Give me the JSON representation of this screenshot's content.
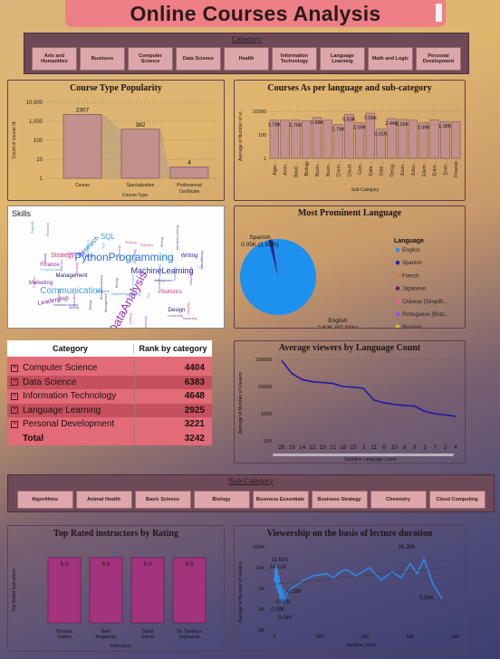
{
  "page": {
    "title": "Online Courses Analysis"
  },
  "category_slicer": {
    "title": "Category",
    "items": [
      "Arts and Humanities",
      "Business",
      "Computer Science",
      "Data Science",
      "Health",
      "Information Technology",
      "Language Learning",
      "Math and Logic",
      "Personal Development"
    ]
  },
  "subcategory_slicer": {
    "title": "Sub-Category",
    "items": [
      "Algorithms",
      "Animal Health",
      "Basic Science",
      "Biology",
      "Business Essentials",
      "Business Strategy",
      "Chemistry",
      "Cloud Computing"
    ]
  },
  "skills": {
    "title": "Skills",
    "words": [
      "PythonProgramming",
      "DataAnalysis",
      "MachineLearning",
      "Communication",
      "Leadership",
      "Management",
      "Statistics",
      "Research",
      "Finance",
      "Writing",
      "SQL",
      "Marketing",
      "Design",
      "Strategy"
    ]
  },
  "table": {
    "headers": [
      "Category",
      "Rank by category"
    ],
    "rows": [
      {
        "category": "Computer Science",
        "rank": "4404"
      },
      {
        "category": "Data Science",
        "rank": "6383"
      },
      {
        "category": "Information Technology",
        "rank": "4648"
      },
      {
        "category": "Language Learning",
        "rank": "2925"
      },
      {
        "category": "Personal Development",
        "rank": "3221"
      }
    ],
    "total_label": "Total",
    "total_value": "3242"
  },
  "colors": {
    "bar": "#c3908e",
    "pie_english": "#1e90ee",
    "line": "#1a1aa8",
    "instructor_bar": "#a3337d",
    "viewer_line": "#2a8ef0"
  },
  "chart_data": [
    {
      "type": "bar",
      "title": "Course Type Popularity",
      "ylabel": "Count of course Id",
      "xlabel": "Course Type",
      "yscale": "log",
      "yticks": [
        "1",
        "10",
        "100",
        "1,000",
        "10,000"
      ],
      "categories": [
        "Course",
        "Specialization",
        "Professional Certificate"
      ],
      "values": [
        2307,
        382,
        4
      ],
      "labels": [
        "2307",
        "382",
        "4"
      ]
    },
    {
      "type": "bar",
      "title": "Courses As per language and sub-category",
      "ylabel": "Average of Number of vi...",
      "xlabel": "Sub-Category",
      "yscale": "log",
      "yticks": [
        "1",
        "100",
        "10000"
      ],
      "categories": [
        "Algor...",
        "Anim...",
        "Basic ...",
        "Biology",
        "Busin...",
        "Busin...",
        "Chem...",
        "Cloud...",
        "Com...",
        "Data ...",
        "Data ...",
        "Desig...",
        "Econ...",
        "Educ...",
        "Electr...",
        "Entre...",
        "Envir...",
        "Finance"
      ],
      "values": [
        1790,
        1760,
        1760,
        1600,
        2980,
        1800,
        790,
        5530,
        1090,
        7050,
        310,
        2440,
        2020,
        1800,
        1090,
        1800,
        1380,
        1380
      ],
      "labels": [
        "1.79K",
        "",
        "1.76K",
        "",
        "2.98K",
        "",
        "0.79K",
        "5.53K",
        "1.09K",
        "7.05K",
        "0.31K",
        "2.44K",
        "2.02K",
        "",
        "1.09K",
        "",
        "1.38K",
        ""
      ]
    },
    {
      "type": "pie",
      "title": "Most Prominent Language",
      "legend_title": "Language",
      "series": [
        {
          "name": "English",
          "value": 2620,
          "color": "#1e90ee"
        },
        {
          "name": "Spanish",
          "value": 50,
          "color": "#1a2d9e"
        },
        {
          "name": "French",
          "value": 1,
          "color": "#e0744a"
        },
        {
          "name": "Japanese",
          "value": 1,
          "color": "#6b1a6b"
        },
        {
          "name": "Chinese (Simplifi...",
          "value": 1,
          "color": "#e85fa0"
        },
        {
          "name": "Portuguese (Braz...",
          "value": 1,
          "color": "#8a5ad8"
        },
        {
          "name": "Russian",
          "value": 1,
          "color": "#e8c21a"
        }
      ],
      "labels": {
        "english": "English",
        "english_value": "2.62K (97.33%)",
        "spanish": "Spanish",
        "spanish_value": "0.05K (1.93%)"
      }
    },
    {
      "type": "line",
      "title": "Average viewers by Language Count",
      "ylabel": "Average of Number of Viewers",
      "xlabel": "Subtitles Language Count",
      "yscale": "log",
      "yticks": [
        "100",
        "1000",
        "10000",
        "100000"
      ],
      "categories": [
        "26",
        "16",
        "14",
        "12",
        "13",
        "21",
        "18",
        "15",
        "3",
        "11",
        "6",
        "10",
        "8",
        "9",
        "1",
        "7",
        "2",
        "4"
      ],
      "values": [
        90000,
        30000,
        18000,
        15000,
        14000,
        13000,
        10000,
        9500,
        8500,
        3200,
        2500,
        2200,
        2000,
        1900,
        1200,
        1000,
        900,
        800
      ]
    },
    {
      "type": "bar",
      "title": "Top Rated instructors by Rating",
      "ylabel": "Top Rated Instructors",
      "xlabel": "Instructors",
      "categories": [
        "Barbara Oakley",
        "Beth Rogowsky",
        "David Joyner",
        "Dr. Terrence Sejnowski"
      ],
      "values": [
        5.0,
        5.0,
        5.0,
        5.0
      ],
      "labels": [
        "5.0",
        "5.0",
        "5.0",
        "5.0"
      ]
    },
    {
      "type": "line",
      "title": "Viewership on the basis of lecture duration",
      "ylabel": "Average of Number of viewers",
      "xlabel": "duration_hours",
      "yscale": "log",
      "yticks": [
        "0K",
        "0K",
        "1K",
        "10K",
        "100K"
      ],
      "xticks": [
        "0",
        "200",
        "400",
        "600",
        "800"
      ],
      "annotations": [
        "26.26K",
        "11.61K",
        "14.12K",
        "0.18K",
        "0.07K",
        "0.09K",
        "0.04K",
        "0.34K"
      ]
    }
  ]
}
